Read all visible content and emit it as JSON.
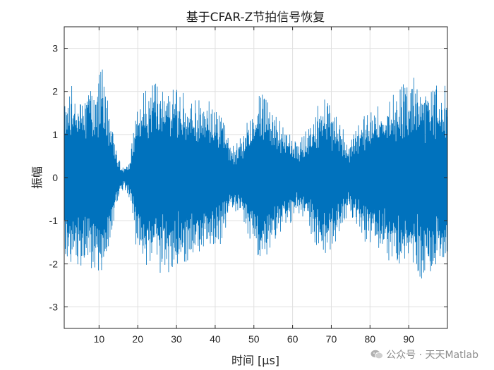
{
  "chart_data": {
    "type": "line",
    "title": "基于CFAR-Z节拍信号恢复",
    "xlabel": "时间 [μs]",
    "ylabel": "振幅",
    "xlim": [
      1,
      100
    ],
    "ylim": [
      -3.5,
      3.5
    ],
    "xticks": [
      10,
      20,
      30,
      40,
      50,
      60,
      70,
      80,
      90
    ],
    "yticks": [
      -3,
      -2,
      -1,
      0,
      1,
      2,
      3
    ],
    "grid": true,
    "series": [
      {
        "color": "#0072BD",
        "envelope": {
          "x": [
            1,
            3,
            6,
            9,
            11,
            13,
            15,
            16.5,
            18,
            19.5,
            21,
            24,
            27,
            30,
            33,
            36,
            39,
            42,
            43.5,
            45,
            47,
            49,
            51,
            53,
            55,
            57,
            59,
            61,
            63,
            65,
            67,
            69,
            71,
            73,
            74.5,
            76,
            78,
            81,
            84,
            87,
            90,
            93,
            96,
            99,
            100
          ],
          "values": [
            1.9,
            2.2,
            2.1,
            2.3,
            2.6,
            1.4,
            0.45,
            0.25,
            0.5,
            1.6,
            2.1,
            2.2,
            2.3,
            2.2,
            2.0,
            1.9,
            1.8,
            1.6,
            0.9,
            0.8,
            1.0,
            1.5,
            1.9,
            2.0,
            1.6,
            1.3,
            1.1,
            0.9,
            1.0,
            1.4,
            1.9,
            2.0,
            1.5,
            1.2,
            0.7,
            1.2,
            1.5,
            1.7,
            1.9,
            2.1,
            2.3,
            2.4,
            2.4,
            2.2,
            2.1
          ]
        }
      }
    ]
  },
  "watermark": {
    "text": "公众号 · 天天Matlab",
    "icon": "wechat-icon"
  }
}
